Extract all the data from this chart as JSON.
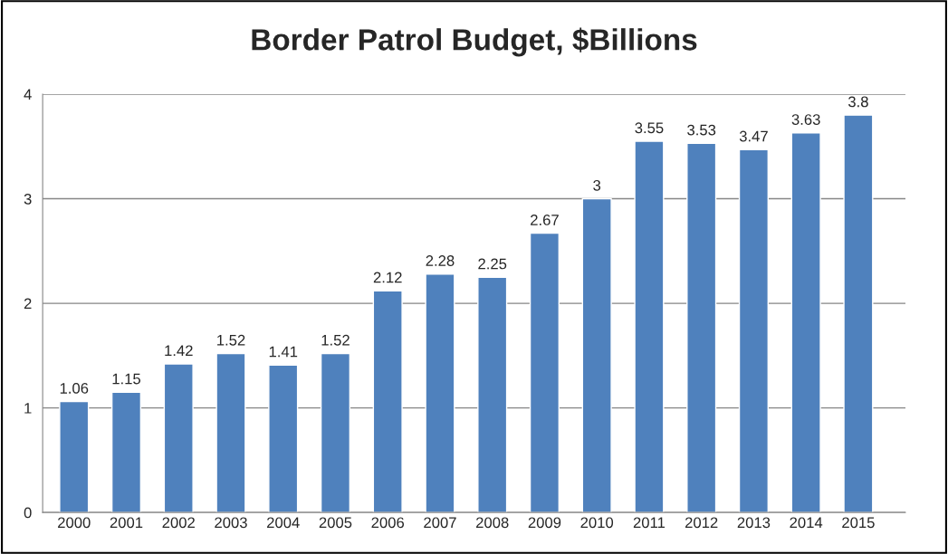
{
  "chart_data": {
    "type": "bar",
    "title": "Border Patrol Budget, $Billions",
    "categories": [
      "2000",
      "2001",
      "2002",
      "2003",
      "2004",
      "2005",
      "2006",
      "2007",
      "2008",
      "2009",
      "2010",
      "2011",
      "2012",
      "2013",
      "2014",
      "2015"
    ],
    "values": [
      1.06,
      1.15,
      1.42,
      1.52,
      1.41,
      1.52,
      2.12,
      2.28,
      2.25,
      2.67,
      3,
      3.55,
      3.53,
      3.47,
      3.63,
      3.8
    ],
    "color": "#4f81bd",
    "ylim": [
      0,
      4
    ],
    "yticks": [
      0,
      1,
      2,
      3,
      4
    ],
    "grid": "y",
    "data_labels": true
  }
}
